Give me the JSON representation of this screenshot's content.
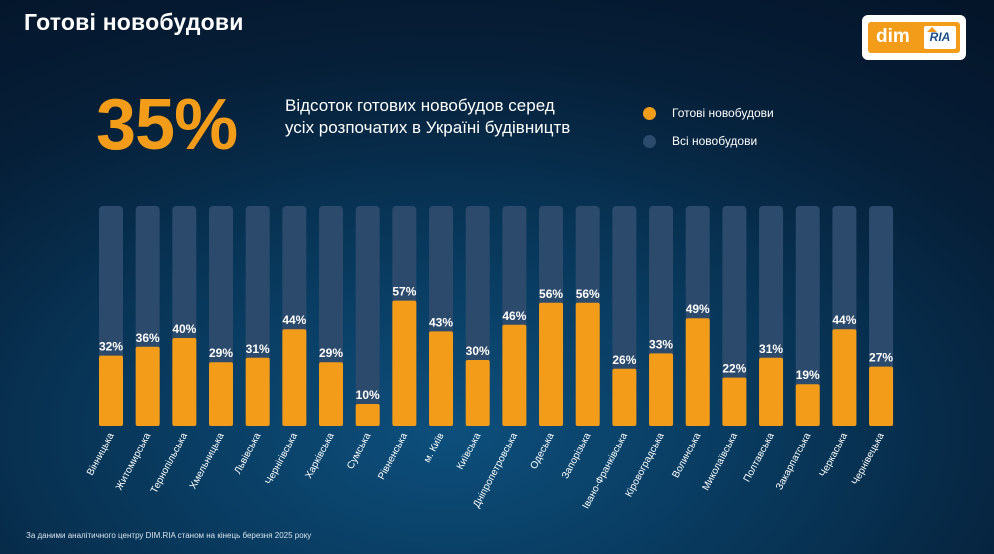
{
  "header": {
    "title": "Готові новобудови"
  },
  "logo": {
    "text_left": "dim",
    "text_right": "RIA"
  },
  "headline": {
    "value": "35%",
    "description": "Відсоток готових новобудов серед усіх розпочатих в Україні будівництв"
  },
  "legend": {
    "ready_label": "Готові новобудови",
    "all_label": "Всі новобудови"
  },
  "colors": {
    "ready": "#f39c19",
    "all": "#2c4b6c",
    "accent": "#f39c19"
  },
  "chart_data": {
    "type": "bar",
    "categories": [
      "Вінницька",
      "Житомирська",
      "Тернопільська",
      "Хмельницька",
      "Львівська",
      "Чернігівська",
      "Харківська",
      "Сумська",
      "Рівненська",
      "м. Київ",
      "Київська",
      "Дніпропетровська",
      "Одеська",
      "Запорізька",
      "Івано-Франківська",
      "Кіровоградська",
      "Волинська",
      "Миколаївська",
      "Полтавська",
      "Закарпатська",
      "Черкаська",
      "Чернівецька"
    ],
    "series": [
      {
        "name": "Всі новобудови",
        "values": [
          100,
          100,
          100,
          100,
          100,
          100,
          100,
          100,
          100,
          100,
          100,
          100,
          100,
          100,
          100,
          100,
          100,
          100,
          100,
          100,
          100,
          100
        ]
      },
      {
        "name": "Готові новобудови",
        "values": [
          32,
          36,
          40,
          29,
          31,
          44,
          29,
          10,
          57,
          43,
          30,
          46,
          56,
          56,
          26,
          33,
          49,
          22,
          31,
          19,
          44,
          27
        ]
      }
    ],
    "data_labels": [
      "32%",
      "36%",
      "40%",
      "29%",
      "31%",
      "44%",
      "29%",
      "10%",
      "57%",
      "43%",
      "30%",
      "46%",
      "56%",
      "56%",
      "26%",
      "33%",
      "49%",
      "22%",
      "31%",
      "19%",
      "44%",
      "27%"
    ],
    "ylim": [
      0,
      100
    ],
    "grid": false,
    "legend_position": "top-right"
  },
  "footer": {
    "source": "За даними аналітичного центру DIM.RIA станом на кінець березня 2025 року"
  }
}
